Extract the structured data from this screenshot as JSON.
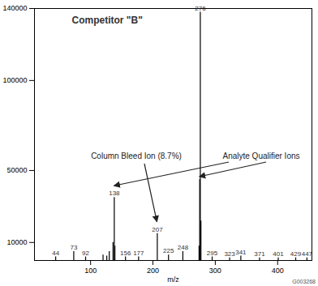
{
  "chart_data": {
    "type": "stem",
    "title": "Competitor \"B\"",
    "x_label": "m/z",
    "x": [
      44,
      73,
      92,
      120,
      126,
      130,
      136,
      138,
      139,
      156,
      177,
      207,
      225,
      248,
      274,
      275,
      276,
      277,
      295,
      323,
      341,
      371,
      401,
      429,
      447
    ],
    "values": [
      2000,
      5000,
      2000,
      3000,
      2500,
      5000,
      10000,
      35000,
      8000,
      2000,
      2000,
      15000,
      3000,
      5000,
      8000,
      45000,
      138000,
      22000,
      2000,
      1500,
      2500,
      1500,
      1500,
      1500,
      1500
    ],
    "labels": [
      44,
      73,
      92,
      null,
      null,
      null,
      null,
      138,
      null,
      156,
      177,
      207,
      225,
      248,
      null,
      null,
      276,
      null,
      295,
      323,
      341,
      371,
      401,
      429,
      447
    ],
    "color": "#000000",
    "xlim": [
      10,
      455
    ],
    "xticks": [
      100,
      200,
      300,
      400
    ],
    "ylim": [
      0,
      140000
    ],
    "yticks": [
      10000,
      50000,
      100000,
      140000
    ],
    "grid": false,
    "annotations": [
      {
        "text": "Column Bleed Ion (8.7%)",
        "targets": [
          207
        ]
      },
      {
        "text": "Analyte Qualifier Ions",
        "targets": [
          138,
          275
        ]
      }
    ],
    "figure_id": "G003268"
  }
}
